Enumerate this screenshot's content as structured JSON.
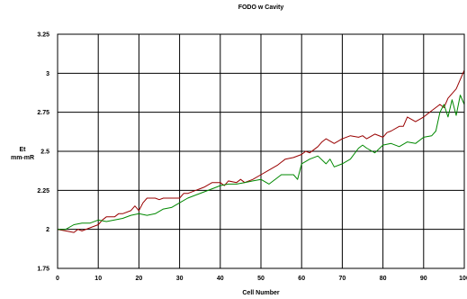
{
  "chart_data": {
    "type": "line",
    "title": "FODO w Cavity",
    "xlabel": "Cell Number",
    "ylabel_lines": [
      "Et",
      "mm-mR"
    ],
    "xlim": [
      0,
      100
    ],
    "ylim": [
      1.75,
      3.25
    ],
    "xticks": [
      0,
      10,
      20,
      30,
      40,
      50,
      60,
      70,
      80,
      90,
      100
    ],
    "xtick_labels": [
      "0",
      "10",
      "20",
      "30",
      "40",
      "50",
      "60",
      "70",
      "80",
      "90",
      "100"
    ],
    "yticks": [
      1.75,
      2,
      2.25,
      2.5,
      2.75,
      3,
      3.25
    ],
    "ytick_labels": [
      "1.75",
      "2",
      "2.25",
      "2.5",
      "2.75",
      "3",
      "3.25"
    ],
    "grid": true,
    "series": [
      {
        "color": "#990000",
        "x": [
          0,
          2,
          4,
          5,
          6,
          8,
          10,
          11,
          12,
          14,
          15,
          16,
          18,
          19,
          20,
          21,
          22,
          24,
          25,
          26,
          28,
          30,
          31,
          32,
          34,
          35,
          36,
          38,
          40,
          41,
          42,
          44,
          45,
          46,
          48,
          50,
          52,
          54,
          55,
          56,
          58,
          60,
          61,
          62,
          64,
          65,
          66,
          68,
          70,
          72,
          74,
          75,
          76,
          78,
          80,
          81,
          82,
          84,
          85,
          86,
          88,
          90,
          92,
          94,
          95,
          96,
          98,
          99,
          100
        ],
        "values": [
          2.0,
          1.99,
          1.98,
          2.0,
          1.99,
          2.01,
          2.03,
          2.06,
          2.08,
          2.08,
          2.1,
          2.1,
          2.12,
          2.15,
          2.12,
          2.17,
          2.2,
          2.2,
          2.19,
          2.2,
          2.2,
          2.2,
          2.23,
          2.23,
          2.25,
          2.26,
          2.27,
          2.3,
          2.3,
          2.28,
          2.31,
          2.3,
          2.32,
          2.3,
          2.32,
          2.35,
          2.38,
          2.41,
          2.43,
          2.45,
          2.46,
          2.48,
          2.5,
          2.49,
          2.53,
          2.56,
          2.58,
          2.55,
          2.58,
          2.6,
          2.59,
          2.6,
          2.58,
          2.61,
          2.59,
          2.62,
          2.63,
          2.66,
          2.66,
          2.72,
          2.69,
          2.72,
          2.76,
          2.8,
          2.78,
          2.84,
          2.9,
          2.96,
          3.02
        ]
      },
      {
        "color": "#008800",
        "x": [
          0,
          2,
          4,
          6,
          8,
          10,
          12,
          14,
          16,
          18,
          20,
          22,
          24,
          26,
          28,
          30,
          32,
          34,
          36,
          38,
          40,
          42,
          44,
          46,
          48,
          50,
          52,
          54,
          55,
          56,
          58,
          59,
          60,
          62,
          64,
          66,
          67,
          68,
          70,
          72,
          74,
          75,
          76,
          78,
          80,
          82,
          84,
          86,
          88,
          90,
          92,
          93,
          94,
          95,
          96,
          97,
          98,
          99,
          100
        ],
        "values": [
          2.0,
          2.0,
          2.03,
          2.04,
          2.04,
          2.06,
          2.05,
          2.06,
          2.07,
          2.09,
          2.1,
          2.09,
          2.1,
          2.13,
          2.14,
          2.17,
          2.2,
          2.22,
          2.24,
          2.26,
          2.28,
          2.29,
          2.29,
          2.3,
          2.31,
          2.32,
          2.29,
          2.33,
          2.35,
          2.35,
          2.35,
          2.32,
          2.42,
          2.45,
          2.47,
          2.42,
          2.45,
          2.4,
          2.42,
          2.45,
          2.52,
          2.54,
          2.52,
          2.49,
          2.54,
          2.55,
          2.53,
          2.56,
          2.55,
          2.59,
          2.6,
          2.63,
          2.75,
          2.8,
          2.72,
          2.83,
          2.73,
          2.86,
          2.8
        ]
      }
    ]
  }
}
